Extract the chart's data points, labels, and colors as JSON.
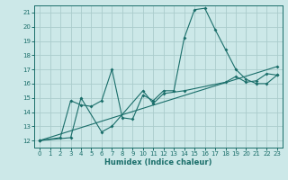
{
  "xlabel": "Humidex (Indice chaleur)",
  "ylabel": "",
  "bg_color": "#cce8e8",
  "grid_color": "#aacccc",
  "line_color": "#1a6e6a",
  "xlim": [
    -0.5,
    23.5
  ],
  "ylim": [
    11.5,
    21.5
  ],
  "xticks": [
    0,
    1,
    2,
    3,
    4,
    5,
    6,
    7,
    8,
    9,
    10,
    11,
    12,
    13,
    14,
    15,
    16,
    17,
    18,
    19,
    20,
    21,
    22,
    23
  ],
  "yticks": [
    12,
    13,
    14,
    15,
    16,
    17,
    18,
    19,
    20,
    21
  ],
  "series1": [
    [
      0,
      12
    ],
    [
      2,
      12.2
    ],
    [
      3,
      14.8
    ],
    [
      4,
      14.5
    ],
    [
      5,
      14.4
    ],
    [
      6,
      14.8
    ],
    [
      7,
      17.0
    ],
    [
      8,
      13.6
    ],
    [
      9,
      13.5
    ],
    [
      10,
      15.2
    ],
    [
      11,
      14.8
    ],
    [
      12,
      15.5
    ],
    [
      13,
      15.5
    ],
    [
      14,
      19.2
    ],
    [
      15,
      21.2
    ],
    [
      16,
      21.3
    ],
    [
      17,
      19.8
    ],
    [
      18,
      18.4
    ],
    [
      19,
      17.0
    ],
    [
      20,
      16.3
    ],
    [
      21,
      16.0
    ],
    [
      22,
      16.0
    ],
    [
      23,
      16.6
    ]
  ],
  "series2": [
    [
      0,
      12
    ],
    [
      3,
      12.2
    ],
    [
      4,
      15.0
    ],
    [
      6,
      12.6
    ],
    [
      7,
      13.0
    ],
    [
      10,
      15.5
    ],
    [
      11,
      14.6
    ],
    [
      12,
      15.3
    ],
    [
      14,
      15.5
    ],
    [
      18,
      16.1
    ],
    [
      19,
      16.5
    ],
    [
      20,
      16.1
    ],
    [
      21,
      16.2
    ],
    [
      22,
      16.7
    ],
    [
      23,
      16.6
    ]
  ],
  "series3": [
    [
      0,
      12
    ],
    [
      23,
      17.2
    ]
  ],
  "figsize": [
    3.2,
    2.0
  ],
  "dpi": 100
}
